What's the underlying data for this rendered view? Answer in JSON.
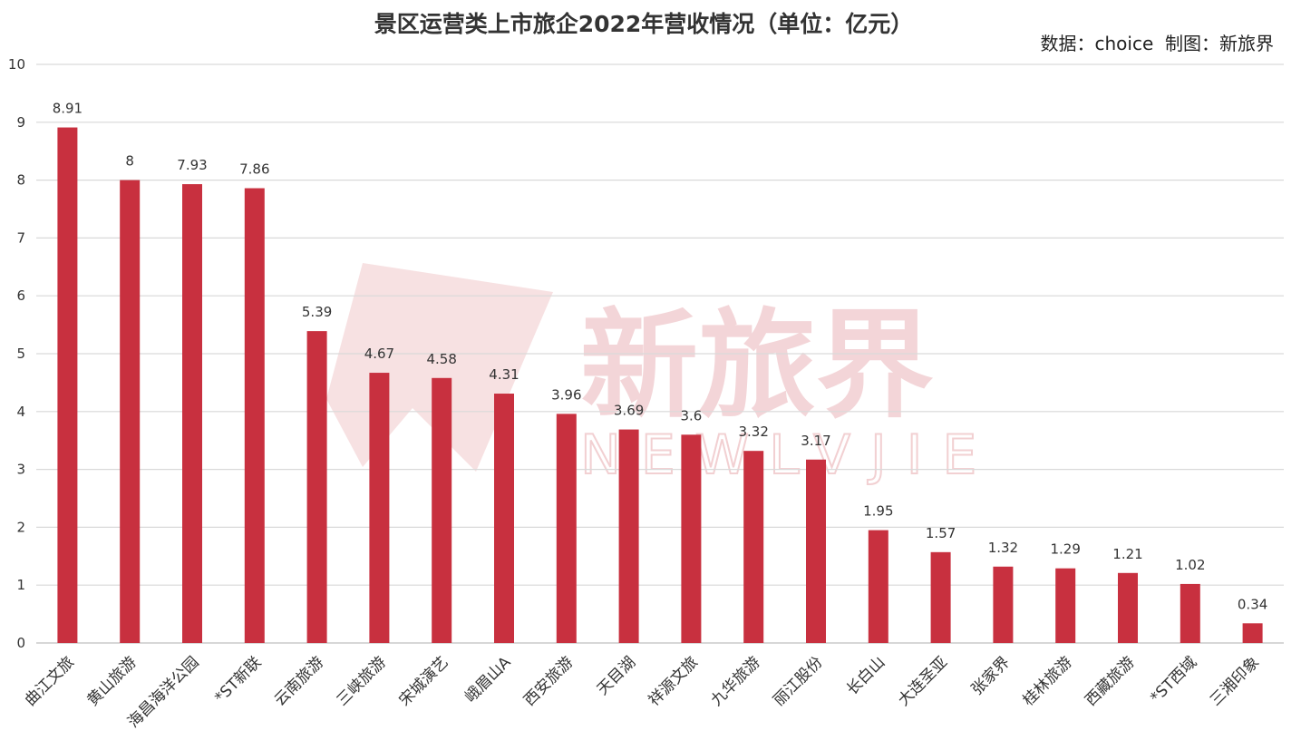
{
  "chart_data": {
    "type": "bar",
    "title": "景区运营类上市旅企2022年营收情况（单位：亿元）",
    "source": "数据：choice  制图：新旅界",
    "categories": [
      "曲江文旅",
      "黄山旅游",
      "海昌海洋公园",
      "*ST新联",
      "云南旅游",
      "三峡旅游",
      "宋城演艺",
      "峨眉山A",
      "西安旅游",
      "天目湖",
      "祥源文旅",
      "九华旅游",
      "丽江股份",
      "长白山",
      "大连圣亚",
      "张家界",
      "桂林旅游",
      "西藏旅游",
      "*ST西域",
      "三湘印象"
    ],
    "values": [
      8.91,
      8,
      7.93,
      7.86,
      5.39,
      4.67,
      4.58,
      4.31,
      3.96,
      3.69,
      3.6,
      3.32,
      3.17,
      1.95,
      1.57,
      1.32,
      1.29,
      1.21,
      1.02,
      0.34
    ],
    "value_labels": [
      "8.91",
      "8",
      "7.93",
      "7.86",
      "5.39",
      "4.67",
      "4.58",
      "4.31",
      "3.96",
      "3.69",
      "3.6",
      "3.32",
      "3.17",
      "1.95",
      "1.57",
      "1.32",
      "1.29",
      "1.21",
      "1.02",
      "0.34"
    ],
    "yticks": [
      "0",
      "1",
      "2",
      "3",
      "4",
      "5",
      "6",
      "7",
      "8",
      "9",
      "10"
    ],
    "ylim": [
      0,
      10
    ],
    "grid": true,
    "bar_color": "#c8303f",
    "watermark": {
      "cn": "新旅界",
      "en": "NEWLVJIE"
    }
  }
}
